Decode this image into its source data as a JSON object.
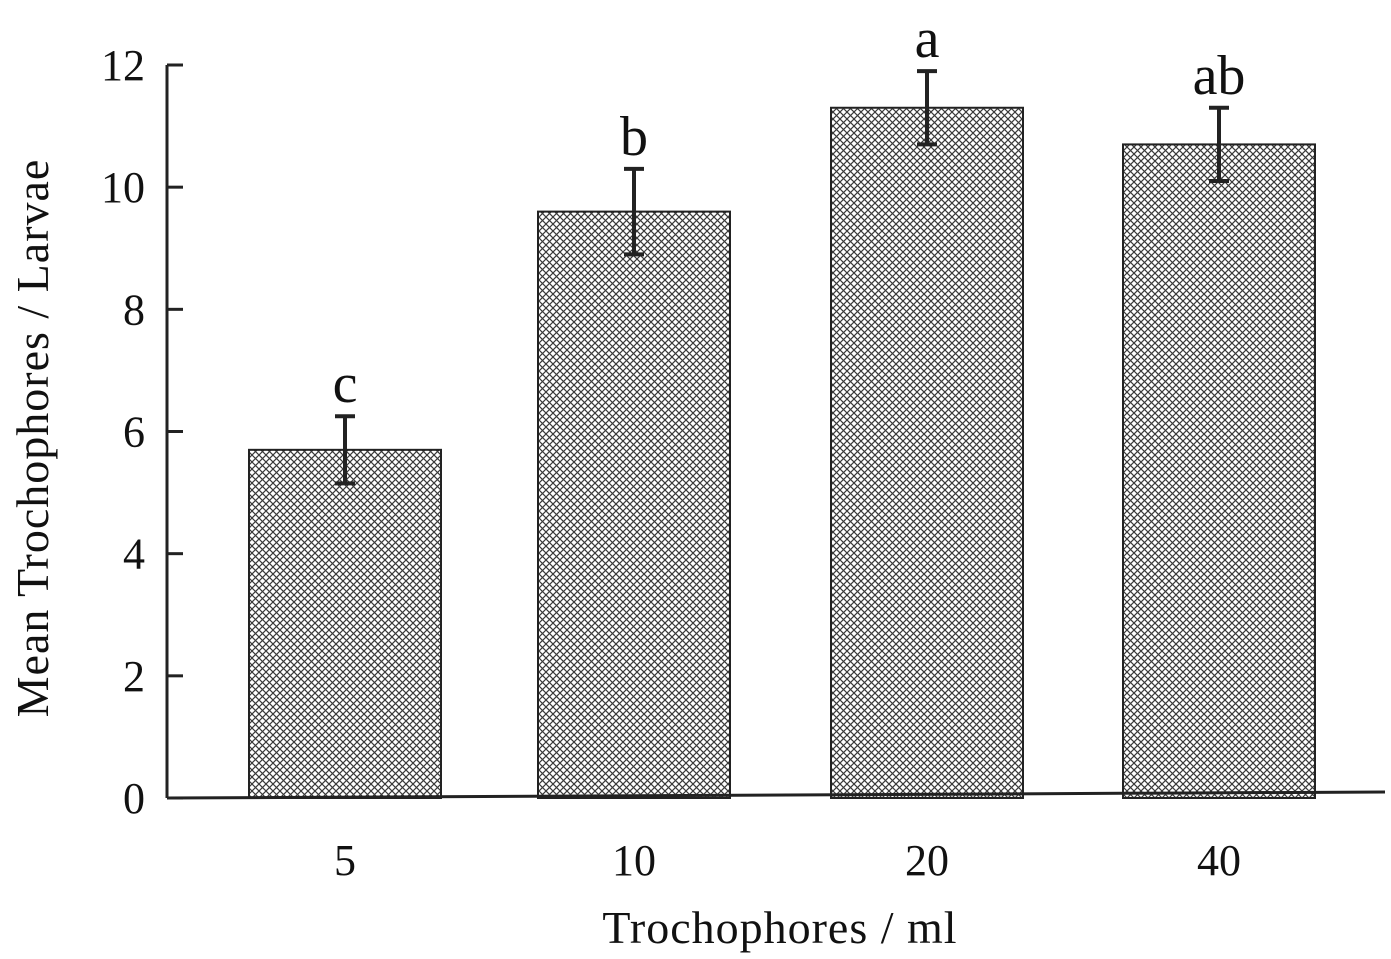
{
  "chart_data": {
    "type": "bar",
    "categories": [
      "5",
      "10",
      "20",
      "40"
    ],
    "values": [
      5.7,
      9.6,
      11.3,
      10.7
    ],
    "errors": [
      0.55,
      0.7,
      0.6,
      0.6
    ],
    "significance_labels": [
      "c",
      "b",
      "a",
      "ab"
    ],
    "xlabel": "Trochophores / ml",
    "ylabel": "Mean Trochophores / Larvae",
    "ylim": [
      0,
      12
    ],
    "yticks": [
      "0",
      "2",
      "4",
      "6",
      "8",
      "10",
      "12"
    ],
    "grid": false,
    "legend": "none",
    "bar_fill": "crosshatch",
    "colors": {
      "bar_fill": "#ffffff",
      "hatch": "#3a3a3a",
      "outline": "#222222",
      "axis": "#222222"
    }
  }
}
